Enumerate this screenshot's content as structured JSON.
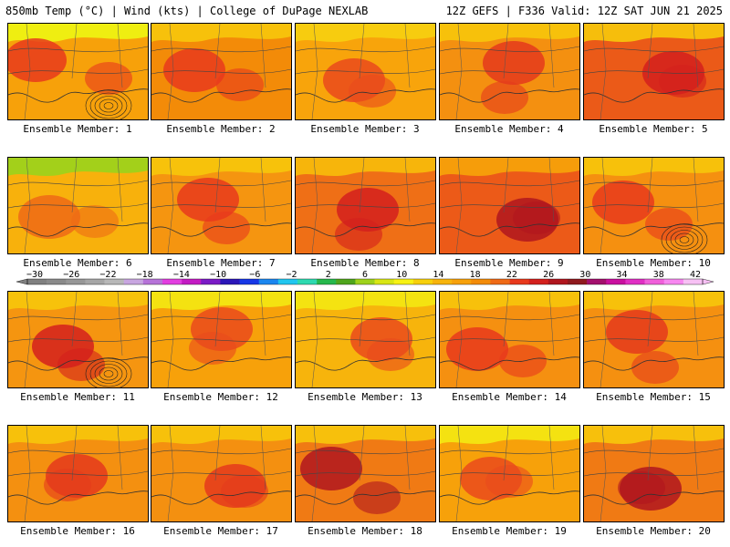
{
  "header": {
    "left_title": "850mb Temp (°C) | Wind (kts) | College of DuPage NEXLAB",
    "right_title": "12Z GEFS | F336 Valid: 12Z SAT JUN 21 2025"
  },
  "members": [
    {
      "label": "Ensemble Member: 1",
      "base": "#f7a10a",
      "hot": "#e8391c",
      "cool": "#eef212",
      "cyclone": true
    },
    {
      "label": "Ensemble Member: 2",
      "base": "#f38b08",
      "hot": "#e8391c",
      "cool": "#f7c40c",
      "cyclone": false
    },
    {
      "label": "Ensemble Member: 3",
      "base": "#f8a40b",
      "hot": "#ea4a1c",
      "cool": "#f7cf10",
      "cyclone": false
    },
    {
      "label": "Ensemble Member: 4",
      "base": "#f49010",
      "hot": "#e43a1c",
      "cool": "#f7c40c",
      "cyclone": false
    },
    {
      "label": "Ensemble Member: 5",
      "base": "#eb5a18",
      "hot": "#d3201d",
      "cool": "#f7c40c",
      "cyclone": false
    },
    {
      "label": "Ensemble Member: 6",
      "base": "#f8b10c",
      "hot": "#ef6a16",
      "cool": "#9ed21b",
      "cyclone": false
    },
    {
      "label": "Ensemble Member: 7",
      "base": "#f59510",
      "hot": "#e8391c",
      "cool": "#f7c40c",
      "cyclone": false
    },
    {
      "label": "Ensemble Member: 8",
      "base": "#ef6f16",
      "hot": "#d3201d",
      "cool": "#f7b80b",
      "cyclone": false
    },
    {
      "label": "Ensemble Member: 9",
      "base": "#ec5a18",
      "hot": "#b0161e",
      "cool": "#f7a10a",
      "cyclone": false
    },
    {
      "label": "Ensemble Member: 10",
      "base": "#f59010",
      "hot": "#e8391c",
      "cool": "#f7c40c",
      "cyclone": true
    },
    {
      "label": "Ensemble Member: 11",
      "base": "#f59510",
      "hot": "#d3201d",
      "cool": "#f7c40c",
      "cyclone": true
    },
    {
      "label": "Ensemble Member: 12",
      "base": "#f7a10a",
      "hot": "#ea4a1c",
      "cool": "#f3e612",
      "cyclone": false
    },
    {
      "label": "Ensemble Member: 13",
      "base": "#f7b40c",
      "hot": "#ea4a1c",
      "cool": "#f3e612",
      "cyclone": false
    },
    {
      "label": "Ensemble Member: 14",
      "base": "#f59010",
      "hot": "#e8391c",
      "cool": "#f7c40c",
      "cyclone": false
    },
    {
      "label": "Ensemble Member: 15",
      "base": "#f59010",
      "hot": "#e43a1c",
      "cool": "#f7c40c",
      "cyclone": false
    },
    {
      "label": "Ensemble Member: 16",
      "base": "#f49010",
      "hot": "#e43a1c",
      "cool": "#f7c40c",
      "cyclone": false
    },
    {
      "label": "Ensemble Member: 17",
      "base": "#f49010",
      "hot": "#e43a1c",
      "cool": "#f7c40c",
      "cyclone": false
    },
    {
      "label": "Ensemble Member: 18",
      "base": "#f07a14",
      "hot": "#b0161e",
      "cool": "#f7c40c",
      "cyclone": false
    },
    {
      "label": "Ensemble Member: 19",
      "base": "#f7a10a",
      "hot": "#ea4a1c",
      "cool": "#f3e612",
      "cyclone": false
    },
    {
      "label": "Ensemble Member: 20",
      "base": "#f07a14",
      "hot": "#b0161e",
      "cool": "#f7c40c",
      "cyclone": false
    }
  ],
  "colorbar": {
    "tick_labels": [
      "−30",
      "−26",
      "−22",
      "−18",
      "−14",
      "−10",
      "−6",
      "−2",
      "2",
      "6",
      "10",
      "14",
      "18",
      "22",
      "26",
      "30",
      "34",
      "38",
      "42"
    ],
    "colors": [
      "#808080",
      "#8a8a8a",
      "#979797",
      "#a6a6a6",
      "#b8b8b8",
      "#c8a6e0",
      "#b673d8",
      "#e23ee0",
      "#c31bc3",
      "#7a1bc6",
      "#2b16b8",
      "#1737e6",
      "#1b86ef",
      "#21c6ef",
      "#2ed9b0",
      "#26b84c",
      "#4fa51c",
      "#9ed21b",
      "#d8e614",
      "#f7f214",
      "#f7d00c",
      "#f7b40c",
      "#f7a10a",
      "#f38b08",
      "#ef6a16",
      "#e8391c",
      "#d3201d",
      "#b0161e",
      "#8f1a1e",
      "#a3106d",
      "#c9109f",
      "#e02fc4",
      "#f05fda",
      "#f787f0",
      "#f7c1f4"
    ]
  }
}
